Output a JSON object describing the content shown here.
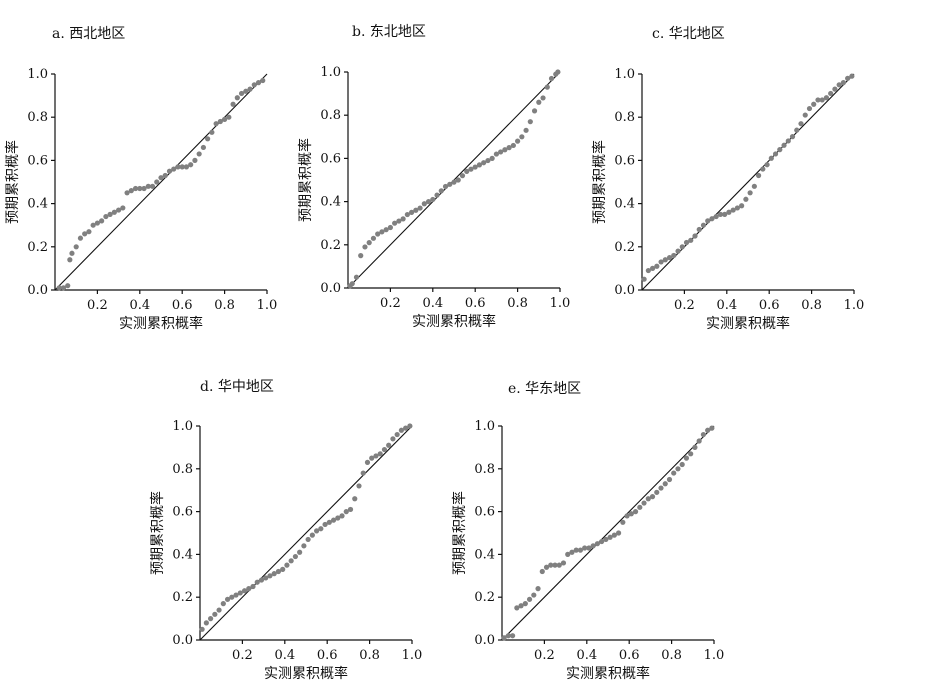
{
  "chart_data": [
    {
      "type": "scatter",
      "title": "a. 西北地区",
      "xlabel": "实测累积概率",
      "ylabel": "预期累积概率",
      "xlim": [
        0,
        1
      ],
      "ylim": [
        0,
        1
      ],
      "x_ticks": [
        "0.2",
        "0.4",
        "0.6",
        "0.8",
        "1.0"
      ],
      "y_ticks": [
        "0.0",
        "0.2",
        "0.4",
        "0.6",
        "0.8",
        "1.0"
      ],
      "reference_line": [
        [
          0,
          0
        ],
        [
          1,
          1
        ]
      ],
      "grid": false,
      "points": [
        [
          0.02,
          0.01
        ],
        [
          0.04,
          0.01
        ],
        [
          0.06,
          0.02
        ],
        [
          0.07,
          0.14
        ],
        [
          0.08,
          0.17
        ],
        [
          0.1,
          0.2
        ],
        [
          0.12,
          0.24
        ],
        [
          0.14,
          0.26
        ],
        [
          0.16,
          0.27
        ],
        [
          0.18,
          0.3
        ],
        [
          0.2,
          0.31
        ],
        [
          0.22,
          0.32
        ],
        [
          0.24,
          0.34
        ],
        [
          0.26,
          0.35
        ],
        [
          0.28,
          0.36
        ],
        [
          0.3,
          0.37
        ],
        [
          0.32,
          0.38
        ],
        [
          0.34,
          0.45
        ],
        [
          0.36,
          0.46
        ],
        [
          0.38,
          0.47
        ],
        [
          0.4,
          0.47
        ],
        [
          0.42,
          0.47
        ],
        [
          0.44,
          0.48
        ],
        [
          0.46,
          0.48
        ],
        [
          0.48,
          0.5
        ],
        [
          0.5,
          0.52
        ],
        [
          0.52,
          0.53
        ],
        [
          0.54,
          0.55
        ],
        [
          0.56,
          0.56
        ],
        [
          0.58,
          0.57
        ],
        [
          0.6,
          0.57
        ],
        [
          0.62,
          0.57
        ],
        [
          0.64,
          0.58
        ],
        [
          0.66,
          0.6
        ],
        [
          0.68,
          0.63
        ],
        [
          0.7,
          0.66
        ],
        [
          0.72,
          0.7
        ],
        [
          0.74,
          0.73
        ],
        [
          0.76,
          0.77
        ],
        [
          0.78,
          0.78
        ],
        [
          0.8,
          0.79
        ],
        [
          0.82,
          0.8
        ],
        [
          0.84,
          0.86
        ],
        [
          0.86,
          0.89
        ],
        [
          0.88,
          0.91
        ],
        [
          0.9,
          0.92
        ],
        [
          0.92,
          0.93
        ],
        [
          0.94,
          0.95
        ],
        [
          0.96,
          0.96
        ],
        [
          0.98,
          0.97
        ]
      ]
    },
    {
      "type": "scatter",
      "title": "b. 东北地区",
      "xlabel": "实测累积概率",
      "ylabel": "预期累积概率",
      "xlim": [
        0,
        1
      ],
      "ylim": [
        0,
        1
      ],
      "x_ticks": [
        "0.2",
        "0.4",
        "0.6",
        "0.8",
        "1.0"
      ],
      "y_ticks": [
        "0.0",
        "0.2",
        "0.4",
        "0.6",
        "0.8",
        "1.0"
      ],
      "reference_line": [
        [
          0,
          0
        ],
        [
          1,
          1
        ]
      ],
      "grid": false,
      "points": [
        [
          0.01,
          0.01
        ],
        [
          0.02,
          0.02
        ],
        [
          0.04,
          0.05
        ],
        [
          0.06,
          0.15
        ],
        [
          0.08,
          0.19
        ],
        [
          0.1,
          0.21
        ],
        [
          0.12,
          0.23
        ],
        [
          0.14,
          0.25
        ],
        [
          0.16,
          0.26
        ],
        [
          0.18,
          0.27
        ],
        [
          0.2,
          0.28
        ],
        [
          0.22,
          0.3
        ],
        [
          0.24,
          0.31
        ],
        [
          0.26,
          0.32
        ],
        [
          0.28,
          0.34
        ],
        [
          0.3,
          0.35
        ],
        [
          0.32,
          0.36
        ],
        [
          0.34,
          0.37
        ],
        [
          0.36,
          0.39
        ],
        [
          0.38,
          0.4
        ],
        [
          0.4,
          0.41
        ],
        [
          0.42,
          0.43
        ],
        [
          0.44,
          0.45
        ],
        [
          0.46,
          0.47
        ],
        [
          0.48,
          0.48
        ],
        [
          0.5,
          0.49
        ],
        [
          0.52,
          0.5
        ],
        [
          0.54,
          0.52
        ],
        [
          0.56,
          0.54
        ],
        [
          0.58,
          0.55
        ],
        [
          0.6,
          0.56
        ],
        [
          0.62,
          0.57
        ],
        [
          0.64,
          0.58
        ],
        [
          0.66,
          0.59
        ],
        [
          0.68,
          0.6
        ],
        [
          0.7,
          0.62
        ],
        [
          0.72,
          0.63
        ],
        [
          0.74,
          0.64
        ],
        [
          0.76,
          0.65
        ],
        [
          0.78,
          0.66
        ],
        [
          0.8,
          0.68
        ],
        [
          0.82,
          0.7
        ],
        [
          0.84,
          0.73
        ],
        [
          0.86,
          0.77
        ],
        [
          0.88,
          0.82
        ],
        [
          0.9,
          0.86
        ],
        [
          0.92,
          0.88
        ],
        [
          0.94,
          0.93
        ],
        [
          0.96,
          0.97
        ],
        [
          0.98,
          0.99
        ],
        [
          0.99,
          1.0
        ]
      ]
    },
    {
      "type": "scatter",
      "title": "c. 华北地区",
      "xlabel": "实测累积概率",
      "ylabel": "预期累积概率",
      "xlim": [
        0,
        1
      ],
      "ylim": [
        0,
        1
      ],
      "x_ticks": [
        "0.2",
        "0.4",
        "0.6",
        "0.8",
        "1.0"
      ],
      "y_ticks": [
        "0.0",
        "0.2",
        "0.4",
        "0.6",
        "0.8",
        "1.0"
      ],
      "reference_line": [
        [
          0,
          0
        ],
        [
          1,
          1
        ]
      ],
      "grid": false,
      "points": [
        [
          0.01,
          0.05
        ],
        [
          0.03,
          0.09
        ],
        [
          0.05,
          0.1
        ],
        [
          0.07,
          0.11
        ],
        [
          0.09,
          0.13
        ],
        [
          0.11,
          0.14
        ],
        [
          0.13,
          0.15
        ],
        [
          0.15,
          0.16
        ],
        [
          0.17,
          0.18
        ],
        [
          0.19,
          0.2
        ],
        [
          0.21,
          0.22
        ],
        [
          0.23,
          0.23
        ],
        [
          0.25,
          0.25
        ],
        [
          0.27,
          0.28
        ],
        [
          0.29,
          0.3
        ],
        [
          0.31,
          0.32
        ],
        [
          0.33,
          0.33
        ],
        [
          0.35,
          0.34
        ],
        [
          0.37,
          0.35
        ],
        [
          0.39,
          0.35
        ],
        [
          0.41,
          0.36
        ],
        [
          0.43,
          0.37
        ],
        [
          0.45,
          0.38
        ],
        [
          0.47,
          0.39
        ],
        [
          0.49,
          0.42
        ],
        [
          0.51,
          0.45
        ],
        [
          0.53,
          0.48
        ],
        [
          0.55,
          0.53
        ],
        [
          0.57,
          0.56
        ],
        [
          0.59,
          0.58
        ],
        [
          0.61,
          0.61
        ],
        [
          0.63,
          0.63
        ],
        [
          0.65,
          0.65
        ],
        [
          0.67,
          0.67
        ],
        [
          0.69,
          0.69
        ],
        [
          0.71,
          0.71
        ],
        [
          0.73,
          0.74
        ],
        [
          0.75,
          0.77
        ],
        [
          0.77,
          0.81
        ],
        [
          0.79,
          0.84
        ],
        [
          0.81,
          0.86
        ],
        [
          0.83,
          0.88
        ],
        [
          0.85,
          0.88
        ],
        [
          0.87,
          0.89
        ],
        [
          0.89,
          0.91
        ],
        [
          0.91,
          0.93
        ],
        [
          0.93,
          0.95
        ],
        [
          0.95,
          0.96
        ],
        [
          0.97,
          0.98
        ],
        [
          0.99,
          0.99
        ]
      ]
    },
    {
      "type": "scatter",
      "title": "d. 华中地区",
      "xlabel": "实测累积概率",
      "ylabel": "预期累积概率",
      "xlim": [
        0,
        1
      ],
      "ylim": [
        0,
        1
      ],
      "x_ticks": [
        "0.2",
        "0.4",
        "0.6",
        "0.8",
        "1.0"
      ],
      "y_ticks": [
        "0.0",
        "0.2",
        "0.4",
        "0.6",
        "0.8",
        "1.0"
      ],
      "reference_line": [
        [
          0,
          0
        ],
        [
          1,
          1
        ]
      ],
      "grid": false,
      "points": [
        [
          0.01,
          0.05
        ],
        [
          0.03,
          0.08
        ],
        [
          0.05,
          0.1
        ],
        [
          0.07,
          0.12
        ],
        [
          0.09,
          0.14
        ],
        [
          0.11,
          0.17
        ],
        [
          0.13,
          0.19
        ],
        [
          0.15,
          0.2
        ],
        [
          0.17,
          0.21
        ],
        [
          0.19,
          0.22
        ],
        [
          0.21,
          0.23
        ],
        [
          0.23,
          0.24
        ],
        [
          0.25,
          0.25
        ],
        [
          0.27,
          0.27
        ],
        [
          0.29,
          0.28
        ],
        [
          0.31,
          0.29
        ],
        [
          0.33,
          0.3
        ],
        [
          0.35,
          0.31
        ],
        [
          0.37,
          0.32
        ],
        [
          0.39,
          0.33
        ],
        [
          0.41,
          0.35
        ],
        [
          0.43,
          0.37
        ],
        [
          0.45,
          0.39
        ],
        [
          0.47,
          0.41
        ],
        [
          0.49,
          0.44
        ],
        [
          0.51,
          0.47
        ],
        [
          0.53,
          0.49
        ],
        [
          0.55,
          0.51
        ],
        [
          0.57,
          0.52
        ],
        [
          0.59,
          0.54
        ],
        [
          0.61,
          0.55
        ],
        [
          0.63,
          0.56
        ],
        [
          0.65,
          0.57
        ],
        [
          0.67,
          0.58
        ],
        [
          0.69,
          0.6
        ],
        [
          0.71,
          0.61
        ],
        [
          0.73,
          0.66
        ],
        [
          0.75,
          0.72
        ],
        [
          0.77,
          0.78
        ],
        [
          0.79,
          0.83
        ],
        [
          0.81,
          0.85
        ],
        [
          0.83,
          0.86
        ],
        [
          0.85,
          0.87
        ],
        [
          0.87,
          0.89
        ],
        [
          0.89,
          0.91
        ],
        [
          0.91,
          0.94
        ],
        [
          0.93,
          0.96
        ],
        [
          0.95,
          0.98
        ],
        [
          0.97,
          0.99
        ],
        [
          0.99,
          1.0
        ]
      ]
    },
    {
      "type": "scatter",
      "title": "e. 华东地区",
      "xlabel": "实测累积概率",
      "ylabel": "预期累积概率",
      "xlim": [
        0,
        1
      ],
      "ylim": [
        0,
        1
      ],
      "x_ticks": [
        "0.2",
        "0.4",
        "0.6",
        "0.8",
        "1.0"
      ],
      "y_ticks": [
        "0.0",
        "0.2",
        "0.4",
        "0.6",
        "0.8",
        "1.0"
      ],
      "reference_line": [
        [
          0,
          0
        ],
        [
          1,
          1
        ]
      ],
      "grid": false,
      "points": [
        [
          0.01,
          0.01
        ],
        [
          0.03,
          0.02
        ],
        [
          0.05,
          0.02
        ],
        [
          0.07,
          0.15
        ],
        [
          0.09,
          0.16
        ],
        [
          0.11,
          0.17
        ],
        [
          0.13,
          0.19
        ],
        [
          0.15,
          0.21
        ],
        [
          0.17,
          0.24
        ],
        [
          0.19,
          0.32
        ],
        [
          0.21,
          0.34
        ],
        [
          0.23,
          0.35
        ],
        [
          0.25,
          0.35
        ],
        [
          0.27,
          0.35
        ],
        [
          0.29,
          0.36
        ],
        [
          0.31,
          0.4
        ],
        [
          0.33,
          0.41
        ],
        [
          0.35,
          0.42
        ],
        [
          0.37,
          0.42
        ],
        [
          0.39,
          0.43
        ],
        [
          0.41,
          0.43
        ],
        [
          0.43,
          0.44
        ],
        [
          0.45,
          0.45
        ],
        [
          0.47,
          0.46
        ],
        [
          0.49,
          0.47
        ],
        [
          0.51,
          0.48
        ],
        [
          0.53,
          0.49
        ],
        [
          0.55,
          0.5
        ],
        [
          0.57,
          0.55
        ],
        [
          0.59,
          0.58
        ],
        [
          0.61,
          0.59
        ],
        [
          0.63,
          0.6
        ],
        [
          0.65,
          0.62
        ],
        [
          0.67,
          0.64
        ],
        [
          0.69,
          0.66
        ],
        [
          0.71,
          0.67
        ],
        [
          0.73,
          0.69
        ],
        [
          0.75,
          0.71
        ],
        [
          0.77,
          0.73
        ],
        [
          0.79,
          0.75
        ],
        [
          0.81,
          0.78
        ],
        [
          0.83,
          0.8
        ],
        [
          0.85,
          0.82
        ],
        [
          0.87,
          0.85
        ],
        [
          0.89,
          0.87
        ],
        [
          0.91,
          0.9
        ],
        [
          0.93,
          0.93
        ],
        [
          0.95,
          0.96
        ],
        [
          0.97,
          0.98
        ],
        [
          0.99,
          0.99
        ]
      ]
    }
  ]
}
